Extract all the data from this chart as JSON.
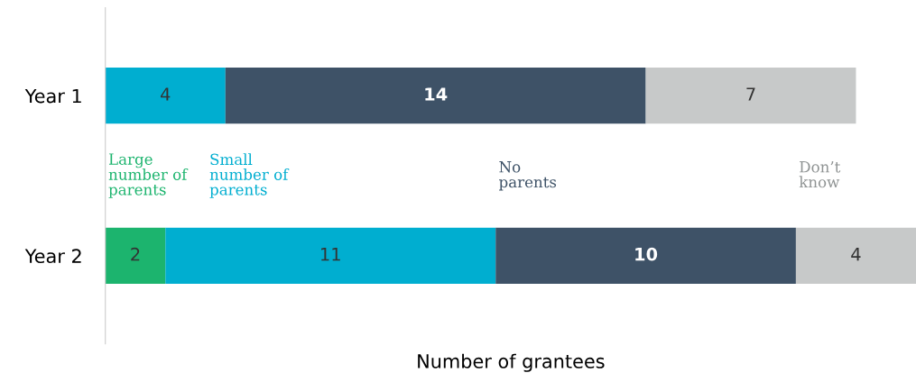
{
  "chart_data": {
    "type": "bar",
    "orientation": "horizontal",
    "stacked": true,
    "xlabel": "Number of grantees",
    "categories": [
      "Year 1",
      "Year 2"
    ],
    "series": [
      {
        "name": "Large number of parents",
        "color": "#1cb46e",
        "values": [
          null,
          2
        ]
      },
      {
        "name": "Small number of parents",
        "color": "#00aed0",
        "values": [
          4,
          11
        ]
      },
      {
        "name": "No parents",
        "color": "#3e5267",
        "values": [
          14,
          10
        ]
      },
      {
        "name": "Don’t know",
        "color": "#c7c9c9",
        "values": [
          7,
          4
        ]
      }
    ],
    "data_labels": true,
    "tick_labels": "y",
    "grid": false,
    "legend": false
  }
}
